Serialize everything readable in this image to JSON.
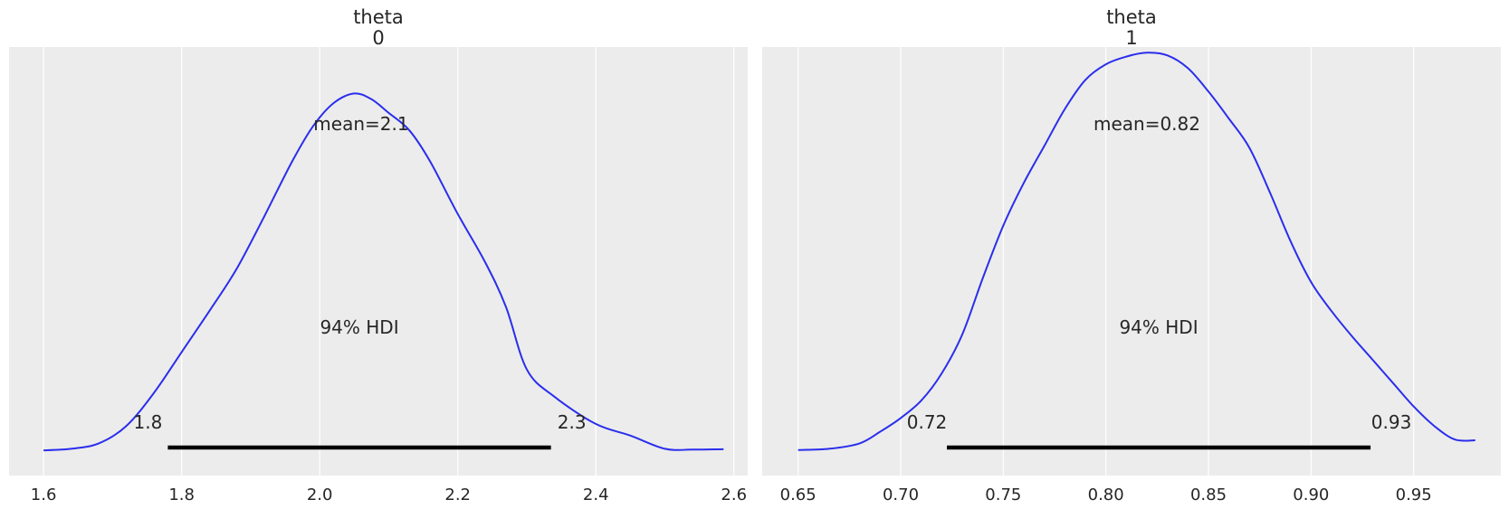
{
  "chart_data": [
    {
      "type": "line",
      "title": "theta",
      "subtitle": "0",
      "xlim": [
        1.55,
        2.62
      ],
      "xticks": [
        "1.6",
        "1.8",
        "2.0",
        "2.2",
        "2.4",
        "2.6"
      ],
      "grid": true,
      "series": [
        {
          "x": [
            1.6,
            1.64,
            1.68,
            1.72,
            1.76,
            1.8,
            1.84,
            1.88,
            1.92,
            1.96,
            1.99,
            2.02,
            2.05,
            2.075,
            2.1,
            2.13,
            2.16,
            2.2,
            2.24,
            2.27,
            2.3,
            2.34,
            2.4,
            2.45,
            2.5,
            2.54,
            2.585
          ],
          "density": [
            0.002,
            0.006,
            0.02,
            0.065,
            0.15,
            0.255,
            0.36,
            0.47,
            0.605,
            0.745,
            0.835,
            0.895,
            0.92,
            0.905,
            0.87,
            0.825,
            0.745,
            0.61,
            0.485,
            0.37,
            0.21,
            0.14,
            0.07,
            0.04,
            0.006,
            0.004,
            0.005
          ]
        }
      ],
      "annotations": {
        "mean_label": "mean=2.1",
        "mean": 2.06,
        "hdi_label": "94% HDI",
        "hdi_low": 1.78,
        "hdi_high": 2.335,
        "hdi_low_label": "1.8",
        "hdi_high_label": "2.3"
      }
    },
    {
      "type": "line",
      "title": "theta",
      "subtitle": "1",
      "xlim": [
        0.6325,
        0.9925
      ],
      "xticks": [
        "0.65",
        "0.70",
        "0.75",
        "0.80",
        "0.85",
        "0.90",
        "0.95"
      ],
      "grid": true,
      "series": [
        {
          "x": [
            0.65,
            0.665,
            0.68,
            0.69,
            0.7,
            0.71,
            0.72,
            0.73,
            0.74,
            0.75,
            0.76,
            0.77,
            0.78,
            0.79,
            0.8,
            0.81,
            0.82,
            0.83,
            0.84,
            0.85,
            0.86,
            0.87,
            0.88,
            0.89,
            0.9,
            0.91,
            0.92,
            0.93,
            0.94,
            0.95,
            0.96,
            0.97,
            0.98
          ],
          "density": [
            0.003,
            0.006,
            0.02,
            0.05,
            0.085,
            0.13,
            0.2,
            0.3,
            0.445,
            0.58,
            0.69,
            0.785,
            0.88,
            0.955,
            0.995,
            1.015,
            1.025,
            1.018,
            0.985,
            0.925,
            0.855,
            0.78,
            0.665,
            0.54,
            0.435,
            0.36,
            0.295,
            0.235,
            0.175,
            0.115,
            0.065,
            0.03,
            0.028
          ]
        }
      ],
      "annotations": {
        "mean_label": "mean=0.82",
        "mean": 0.82,
        "hdi_label": "94% HDI",
        "hdi_low": 0.7225,
        "hdi_high": 0.929,
        "hdi_low_label": "0.72",
        "hdi_high_label": "0.93"
      }
    }
  ]
}
